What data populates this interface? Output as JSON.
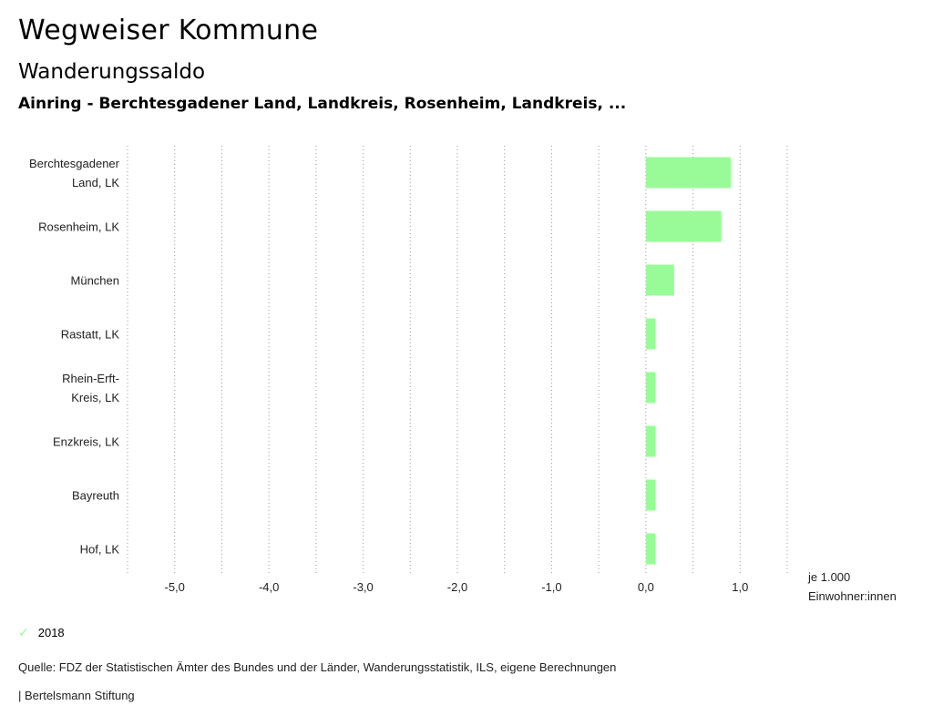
{
  "header": {
    "title": "Wegweiser Kommune",
    "subtitle": "Wanderungssaldo",
    "region_line": "Ainring - Berchtesgadener Land, Landkreis, Rosenheim, Landkreis, ..."
  },
  "chart_data": {
    "type": "bar",
    "orientation": "horizontal",
    "categories": [
      [
        "Berchtesgadener",
        "Land, LK"
      ],
      [
        "Rosenheim, LK"
      ],
      [
        "München"
      ],
      [
        "Rastatt, LK"
      ],
      [
        "Rhein-Erft-",
        "Kreis, LK"
      ],
      [
        "Enzkreis, LK"
      ],
      [
        "Bayreuth"
      ],
      [
        "Hof, LK"
      ]
    ],
    "series": [
      {
        "name": "2018",
        "color": "#98fb98",
        "values": [
          0.9,
          0.8,
          0.3,
          0.1,
          0.1,
          0.1,
          0.1,
          0.1
        ]
      }
    ],
    "xlim": [
      -5.5,
      1.5
    ],
    "xticks": [
      -5.0,
      -4.0,
      -3.0,
      -2.0,
      -1.0,
      0.0,
      1.0
    ],
    "xtick_labels": [
      "-5,0",
      "-4,0",
      "-3,0",
      "-2,0",
      "-1,0",
      "0,0",
      "1,0"
    ],
    "xlabel": [
      "je 1.000",
      "Einwohner:innen"
    ],
    "grid": true,
    "legend_position": "bottom-left"
  },
  "legend": {
    "label": "2018",
    "icon": "check-icon",
    "color": "#98fb98"
  },
  "footer": {
    "source": "Quelle: FDZ der Statistischen Ämter des Bundes und der Länder, Wanderungsstatistik, ILS, eigene Berechnungen",
    "brand": "| Bertelsmann Stiftung"
  }
}
